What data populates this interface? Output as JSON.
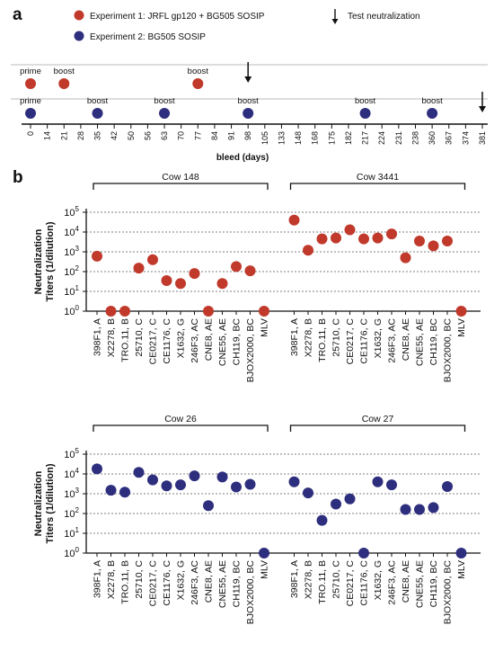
{
  "colors": {
    "exp1": "#c0392b",
    "exp2": "#2e2e7e",
    "grid": "#555555"
  },
  "panel_a": {
    "letter": "a",
    "legend": [
      {
        "label": "Experiment 1: JRFL gp120 + BG505 SOSIP",
        "color": "#c0392b"
      },
      {
        "label": "Experiment 2: BG505 SOSIP",
        "color": "#2e2e7e"
      }
    ],
    "arrow_legend": "Test neutralization",
    "xlabel": "bleed (days)"
  },
  "panel_b": {
    "letter": "b"
  },
  "chart_data": [
    {
      "type": "timeline",
      "xlabel": "bleed (days)",
      "ticks": [
        0,
        14,
        21,
        28,
        35,
        42,
        50,
        56,
        63,
        70,
        77,
        84,
        91,
        98,
        105,
        133,
        148,
        168,
        175,
        182,
        217,
        224,
        231,
        238,
        360,
        367,
        374,
        381
      ],
      "series": [
        {
          "name": "Experiment 1: JRFL gp120 + BG505 SOSIP",
          "events": [
            {
              "day": 0,
              "label": "prime"
            },
            {
              "day": 21,
              "label": "boost"
            },
            {
              "day": 77,
              "label": "boost"
            }
          ],
          "test_arrows": [
            98
          ]
        },
        {
          "name": "Experiment 2: BG505 SOSIP",
          "events": [
            {
              "day": 0,
              "label": "prime"
            },
            {
              "day": 35,
              "label": "boost"
            },
            {
              "day": 63,
              "label": "boost"
            },
            {
              "day": 98,
              "label": "boost"
            },
            {
              "day": 217,
              "label": "boost"
            },
            {
              "day": 360,
              "label": "boost"
            }
          ],
          "test_arrows": [
            381
          ]
        }
      ]
    },
    {
      "type": "scatter",
      "ylabel": "Neutralization Titers (1/dilution)",
      "yscale": "log",
      "ylim": [
        1,
        100000
      ],
      "ytick_labels": [
        {
          "base": "10",
          "exp": "0"
        },
        {
          "base": "10",
          "exp": "1"
        },
        {
          "base": "10",
          "exp": "2"
        },
        {
          "base": "10",
          "exp": "3"
        },
        {
          "base": "10",
          "exp": "4"
        },
        {
          "base": "10",
          "exp": "5"
        }
      ],
      "grid": "horizontal dashed",
      "categories": [
        "398F1, A",
        "X2278, B",
        "TRO.11, B",
        "25710, C",
        "CE0217, C",
        "CE1176, C",
        "X1632, G",
        "246F3, AC",
        "CNE8, AE",
        "CNE55, AE",
        "CH119, BC",
        "BJOX2000, BC",
        "MLV"
      ],
      "groups": [
        {
          "name": "Cow 148",
          "values": [
            600,
            1,
            1,
            150,
            400,
            35,
            25,
            80,
            1,
            25,
            180,
            110,
            1
          ]
        },
        {
          "name": "Cow 3441",
          "values": [
            40000,
            1200,
            4500,
            5000,
            13000,
            4500,
            5000,
            8000,
            500,
            3500,
            2000,
            3500,
            1
          ]
        }
      ]
    },
    {
      "type": "scatter",
      "ylabel": "Neutralization Titers (1/dilution)",
      "yscale": "log",
      "ylim": [
        1,
        100000
      ],
      "ytick_labels": [
        {
          "base": "10",
          "exp": "0"
        },
        {
          "base": "10",
          "exp": "1"
        },
        {
          "base": "10",
          "exp": "2"
        },
        {
          "base": "10",
          "exp": "3"
        },
        {
          "base": "10",
          "exp": "4"
        },
        {
          "base": "10",
          "exp": "5"
        }
      ],
      "grid": "horizontal dashed",
      "categories": [
        "398F1, A",
        "X2278, B",
        "TRO.11, B",
        "25710, C",
        "CE0217, C",
        "CE1176, C",
        "X1632, G",
        "246F3, AC",
        "CNE8, AE",
        "CNE55, AE",
        "CH119, BC",
        "BJOX2000, BC",
        "MLV"
      ],
      "groups": [
        {
          "name": "Cow 26",
          "values": [
            18000,
            1500,
            1200,
            12000,
            5000,
            2500,
            2800,
            8000,
            250,
            7000,
            2200,
            3000,
            1
          ]
        },
        {
          "name": "Cow 27",
          "values": [
            4000,
            1100,
            45,
            300,
            550,
            1,
            4000,
            2800,
            160,
            160,
            200,
            2300,
            1
          ]
        }
      ]
    }
  ]
}
